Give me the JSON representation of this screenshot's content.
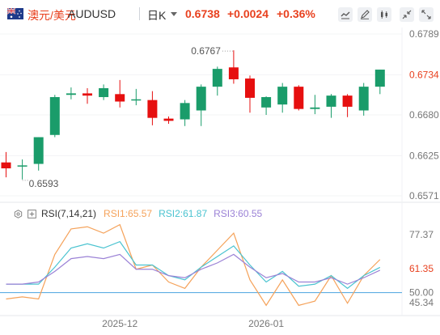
{
  "header": {
    "pair_cn": "澳元/美元",
    "pair_code": "AUDUSD",
    "period": "日K",
    "price": "0.6738",
    "change": "+0.0024",
    "change_pct": "+0.36%"
  },
  "toolbar": {
    "icons": [
      "line-chart-icon",
      "draw-icon",
      "indicator-icon",
      "collapse-icon",
      "fullscreen-icon"
    ]
  },
  "colors": {
    "up": "#1a9c6a",
    "down": "#e60f0f",
    "rsi1": "#f5a25a",
    "rsi2": "#4ac3d0",
    "rsi3": "#9b82d6",
    "baseline": "#4aa3df",
    "price_label": "#e8411f"
  },
  "rsi_legend": {
    "name": "RSI(7,14,21)",
    "rsi1": "RSI1:65.57",
    "rsi2": "RSI2:61.87",
    "rsi3": "RSI3:60.55"
  },
  "chart_data": [
    {
      "type": "candlestick",
      "symbol": "AUDUSD",
      "period": "日K",
      "price_ticks": [
        "0.6789",
        "0.6734",
        "0.6680",
        "0.6625",
        "0.6571"
      ],
      "highlight_tick": "0.6734",
      "ylim": [
        0.6571,
        0.6789
      ],
      "date_ticks": [
        "2025-12",
        "2026-01"
      ],
      "annotations": {
        "max": "0.6767",
        "min": "0.6593"
      },
      "candles": [
        {
          "o": 0.6616,
          "h": 0.663,
          "l": 0.6596,
          "c": 0.6608
        },
        {
          "o": 0.6612,
          "h": 0.662,
          "l": 0.6593,
          "c": 0.6612
        },
        {
          "o": 0.6614,
          "h": 0.665,
          "l": 0.6605,
          "c": 0.665
        },
        {
          "o": 0.6653,
          "h": 0.6707,
          "l": 0.665,
          "c": 0.6704
        },
        {
          "o": 0.6707,
          "h": 0.6717,
          "l": 0.6701,
          "c": 0.6709
        },
        {
          "o": 0.6709,
          "h": 0.6716,
          "l": 0.6695,
          "c": 0.6706
        },
        {
          "o": 0.6704,
          "h": 0.6721,
          "l": 0.67,
          "c": 0.6716
        },
        {
          "o": 0.6708,
          "h": 0.6727,
          "l": 0.669,
          "c": 0.6698
        },
        {
          "o": 0.67,
          "h": 0.6715,
          "l": 0.6693,
          "c": 0.6701
        },
        {
          "o": 0.67,
          "h": 0.6712,
          "l": 0.6666,
          "c": 0.6676
        },
        {
          "o": 0.6675,
          "h": 0.6678,
          "l": 0.6668,
          "c": 0.6672
        },
        {
          "o": 0.6674,
          "h": 0.67,
          "l": 0.6665,
          "c": 0.6696
        },
        {
          "o": 0.6686,
          "h": 0.6721,
          "l": 0.6665,
          "c": 0.6718
        },
        {
          "o": 0.6718,
          "h": 0.6745,
          "l": 0.6706,
          "c": 0.6742
        },
        {
          "o": 0.6744,
          "h": 0.6767,
          "l": 0.6722,
          "c": 0.6728
        },
        {
          "o": 0.6729,
          "h": 0.6733,
          "l": 0.6683,
          "c": 0.6703
        },
        {
          "o": 0.669,
          "h": 0.6705,
          "l": 0.668,
          "c": 0.6704
        },
        {
          "o": 0.6694,
          "h": 0.6723,
          "l": 0.6683,
          "c": 0.6718
        },
        {
          "o": 0.6718,
          "h": 0.672,
          "l": 0.6686,
          "c": 0.6688
        },
        {
          "o": 0.6688,
          "h": 0.6707,
          "l": 0.6681,
          "c": 0.669
        },
        {
          "o": 0.6691,
          "h": 0.6708,
          "l": 0.6676,
          "c": 0.6706
        },
        {
          "o": 0.6706,
          "h": 0.6708,
          "l": 0.6677,
          "c": 0.6691
        },
        {
          "o": 0.6686,
          "h": 0.6723,
          "l": 0.6679,
          "c": 0.6718
        },
        {
          "o": 0.6718,
          "h": 0.6741,
          "l": 0.6708,
          "c": 0.6741
        }
      ]
    },
    {
      "type": "line",
      "title": "RSI(7,14,21)",
      "y_ticks": [
        "77.37",
        "61.35",
        "50.00",
        "45.34"
      ],
      "highlight_tick": "61.35",
      "baseline": 50.0,
      "ylim": [
        43,
        83
      ],
      "series": [
        {
          "name": "RSI1",
          "values": [
            47,
            48,
            47,
            68,
            80,
            81,
            78,
            82,
            61,
            63,
            55,
            52,
            62,
            70,
            78,
            56,
            44,
            56,
            44,
            46,
            58,
            45,
            58,
            65.57
          ]
        },
        {
          "name": "RSI2",
          "values": [
            54,
            54,
            54,
            62,
            71,
            73,
            71,
            74,
            63,
            63,
            58,
            56,
            62,
            67,
            72,
            63,
            55,
            60,
            53,
            54,
            58,
            52,
            58,
            61.87
          ]
        },
        {
          "name": "RSI3",
          "values": [
            54,
            54,
            55,
            60,
            66,
            67,
            66,
            68,
            61,
            61,
            58,
            57,
            61,
            64,
            68,
            62,
            57,
            59,
            55,
            55,
            57,
            54,
            57,
            60.55
          ]
        }
      ]
    }
  ]
}
